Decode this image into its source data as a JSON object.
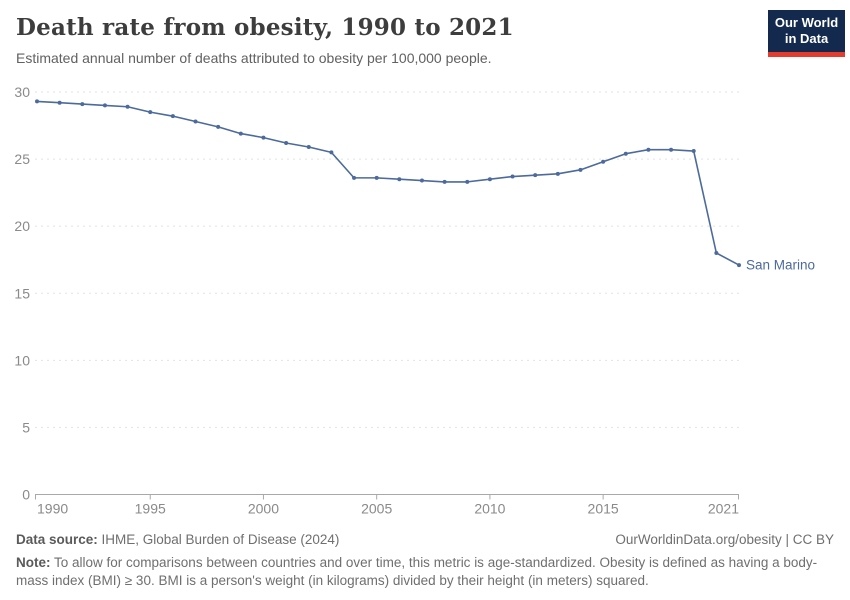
{
  "header": {
    "title": "Death rate from obesity, 1990 to 2021",
    "subtitle": "Estimated annual number of deaths attributed to obesity per 100,000 people.",
    "logo": {
      "line1": "Our World",
      "line2": "in Data",
      "bg_color": "#13294d",
      "accent_color": "#e23d2e"
    }
  },
  "chart_data": {
    "type": "line",
    "title": "Death rate from obesity, 1990 to 2021",
    "entity": "San Marino",
    "x": [
      1990,
      1991,
      1992,
      1993,
      1994,
      1995,
      1996,
      1997,
      1998,
      1999,
      2000,
      2001,
      2002,
      2003,
      2004,
      2005,
      2006,
      2007,
      2008,
      2009,
      2010,
      2011,
      2012,
      2013,
      2014,
      2015,
      2016,
      2017,
      2018,
      2019,
      2020,
      2021
    ],
    "values": [
      29.3,
      29.2,
      29.1,
      29.0,
      28.9,
      28.5,
      28.2,
      27.8,
      27.4,
      26.9,
      26.6,
      26.2,
      25.9,
      25.5,
      23.6,
      23.6,
      23.5,
      23.4,
      23.3,
      23.3,
      23.5,
      23.7,
      23.8,
      23.9,
      24.2,
      24.8,
      25.4,
      25.7,
      25.7,
      25.6,
      18.0,
      17.1
    ],
    "xlabel": "",
    "ylabel": "",
    "ylim": [
      0,
      30
    ],
    "yticks": [
      0,
      5,
      10,
      15,
      20,
      25,
      30
    ],
    "xticks": [
      1990,
      1995,
      2000,
      2005,
      2010,
      2015,
      2021
    ],
    "grid": "horizontal-dashed",
    "legend_position": "end-of-line-label",
    "line_color": "#4c6a9c",
    "label_color": "#4c6a9c",
    "axis_color": "#a9a9a9",
    "grid_color": "#e2e2e2",
    "tick_label_color": "#8a8a8a"
  },
  "footer": {
    "source_label": "Data source:",
    "source_text": " IHME, Global Burden of Disease (2024)",
    "link_text": "OurWorldinData.org/obesity | CC BY",
    "note_label": "Note:",
    "note_text": " To allow for comparisons between countries and over time, this metric is age-standardized. Obesity is defined as having a body-mass index (BMI) ≥ 30. BMI is a person's weight (in kilograms) divided by their height (in meters) squared."
  }
}
